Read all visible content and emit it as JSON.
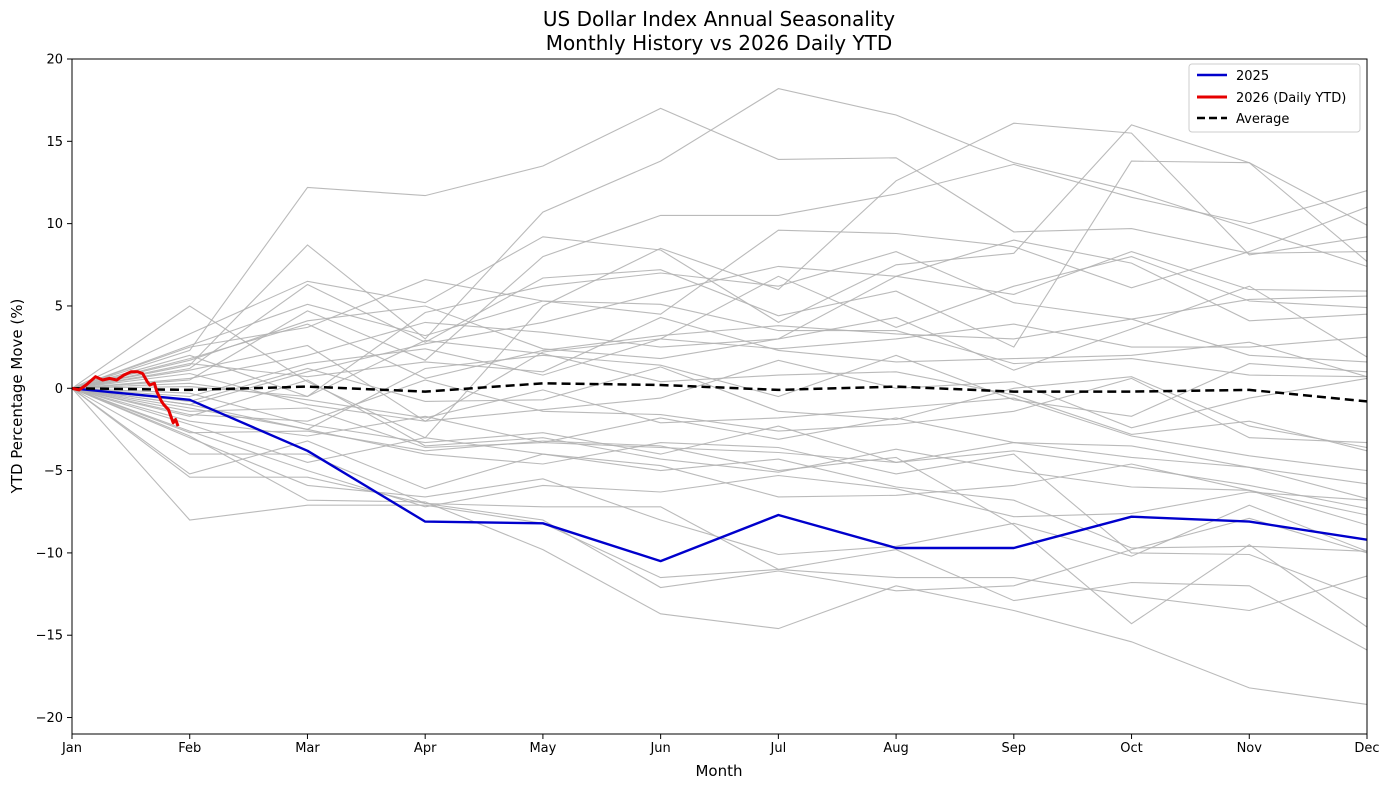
{
  "chart_data": {
    "type": "line",
    "title_line1": "US Dollar Index Annual Seasonality",
    "title_line2": "Monthly History vs 2026 Daily YTD",
    "xlabel": "Month",
    "ylabel": "YTD Percentage Move (%)",
    "categories": [
      "Jan",
      "Feb",
      "Mar",
      "Apr",
      "May",
      "Jun",
      "Jul",
      "Aug",
      "Sep",
      "Oct",
      "Nov",
      "Dec"
    ],
    "ylim": [
      -21,
      20
    ],
    "yticks": [
      20,
      15,
      10,
      5,
      0,
      -5,
      -10,
      -15,
      -20
    ],
    "ytick_labels": [
      "20",
      "15",
      "10",
      "5",
      "0",
      "−5",
      "−10",
      "−15",
      "−20"
    ],
    "legend_position": "top-right",
    "colors": {
      "history": "#b3b3b3",
      "y2025": "#0000cc",
      "y2026": "#e60000",
      "average": "#000000"
    },
    "series": [
      {
        "name": "2025",
        "role": "highlight",
        "values": [
          0,
          -0.7,
          -3.8,
          -8.1,
          -8.2,
          -10.5,
          -7.7,
          -9.7,
          -9.7,
          -7.8,
          -8.1,
          -9.2
        ]
      },
      {
        "name": "Average",
        "role": "average",
        "values": [
          0,
          -0.1,
          0.1,
          -0.2,
          0.3,
          0.2,
          -0.1,
          0.1,
          -0.2,
          -0.2,
          -0.1,
          -0.8
        ]
      }
    ],
    "ytd_2026": {
      "name": "2026 (Daily YTD)",
      "x": [
        0,
        0.06,
        0.12,
        0.2,
        0.26,
        0.32,
        0.38,
        0.44,
        0.5,
        0.56,
        0.6,
        0.64,
        0.66,
        0.7,
        0.72,
        0.76,
        0.78,
        0.82,
        0.86,
        0.88,
        0.9
      ],
      "y": [
        0,
        -0.1,
        0.2,
        0.7,
        0.5,
        0.6,
        0.5,
        0.8,
        1.0,
        1.0,
        0.9,
        0.4,
        0.2,
        0.3,
        -0.2,
        -0.8,
        -1.0,
        -1.3,
        -2.1,
        -1.9,
        -2.3
      ]
    },
    "history": [
      [
        0,
        2.3,
        12.2,
        11.7,
        13.5,
        17.0,
        13.9,
        14.0,
        9.5,
        9.7,
        8.2,
        8.3
      ],
      [
        0,
        1.4,
        8.7,
        3.0,
        10.7,
        13.8,
        18.2,
        16.6,
        13.7,
        12.0,
        9.7,
        7.4
      ],
      [
        0,
        5.0,
        0.4,
        -3.0,
        5.0,
        8.5,
        6.0,
        12.6,
        16.1,
        15.5,
        8.1,
        9.2
      ],
      [
        0,
        3.3,
        6.5,
        5.2,
        9.2,
        8.4,
        4.0,
        7.5,
        8.2,
        16.0,
        13.7,
        7.7
      ],
      [
        0,
        0.5,
        4.7,
        1.7,
        8.0,
        10.5,
        10.5,
        11.8,
        13.6,
        11.6,
        10.0,
        12.0
      ],
      [
        0,
        2.5,
        3.7,
        6.6,
        5.3,
        4.5,
        9.6,
        9.4,
        8.6,
        6.1,
        8.3,
        11.0
      ],
      [
        0,
        1.2,
        6.3,
        2.8,
        6.7,
        7.2,
        4.4,
        5.9,
        2.5,
        13.8,
        13.7,
        9.9
      ],
      [
        0,
        -1.0,
        1.0,
        2.7,
        4.0,
        5.8,
        7.4,
        6.8,
        5.7,
        8.3,
        6.0,
        5.9
      ],
      [
        0,
        2.0,
        -0.5,
        4.6,
        6.2,
        7.0,
        6.2,
        8.3,
        5.2,
        4.2,
        5.4,
        5.6
      ],
      [
        0,
        1.1,
        2.6,
        -2.0,
        2.2,
        3.0,
        6.8,
        3.7,
        6.2,
        8.0,
        5.3,
        4.9
      ],
      [
        0,
        1.7,
        4.1,
        5.0,
        2.4,
        1.8,
        3.0,
        6.8,
        9.0,
        7.6,
        4.1,
        4.5
      ],
      [
        0,
        0.6,
        2.0,
        4.0,
        3.4,
        2.5,
        3.0,
        4.3,
        1.1,
        3.6,
        6.2,
        1.9
      ],
      [
        0,
        -0.5,
        1.5,
        2.4,
        0.8,
        3.0,
        2.4,
        3.0,
        3.9,
        2.5,
        2.5,
        3.1
      ],
      [
        0,
        1.5,
        0.7,
        1.6,
        1.0,
        4.3,
        2.3,
        1.6,
        1.8,
        2.0,
        2.8,
        0.7
      ],
      [
        0,
        -1.2,
        -2.5,
        1.2,
        2.0,
        1.4,
        -0.5,
        2.0,
        -0.7,
        -1.7,
        1.5,
        1.0
      ],
      [
        0,
        0.9,
        -1.0,
        -2.0,
        -1.3,
        -0.6,
        1.7,
        0.0,
        0.4,
        -2.4,
        -0.6,
        0.6
      ],
      [
        0,
        -0.8,
        1.2,
        -0.8,
        -0.7,
        1.3,
        -1.4,
        -1.9,
        0.0,
        0.7,
        -2.3,
        -3.6
      ],
      [
        0,
        -1.6,
        -2.0,
        0.5,
        -1.4,
        -1.6,
        -2.6,
        -2.2,
        -1.4,
        0.6,
        -3.0,
        -3.3
      ],
      [
        0,
        -1.4,
        -1.2,
        -3.6,
        -3.3,
        -1.8,
        -3.1,
        -1.8,
        -3.3,
        -4.2,
        -4.8,
        -6.7
      ],
      [
        0,
        -2.0,
        -2.9,
        -1.7,
        -3.3,
        -3.6,
        -3.9,
        -4.5,
        -3.8,
        -4.8,
        -5.9,
        -7.3
      ],
      [
        0,
        -1.7,
        0.5,
        -3.5,
        -3.0,
        -4.3,
        -5.1,
        -3.7,
        -5.0,
        -6.0,
        -6.2,
        -7.7
      ],
      [
        0,
        -2.2,
        -4.5,
        -3.0,
        -4.0,
        -5.0,
        -4.3,
        -6.0,
        -6.8,
        -9.7,
        -9.6,
        -9.9
      ],
      [
        0,
        -2.6,
        -5.0,
        -7.2,
        -5.9,
        -6.3,
        -5.3,
        -6.1,
        -7.8,
        -7.6,
        -6.3,
        -6.8
      ],
      [
        0,
        -5.2,
        -3.2,
        -6.1,
        -4.0,
        -4.7,
        -6.6,
        -6.5,
        -5.9,
        -4.6,
        -6.2,
        -8.3
      ],
      [
        0,
        -3.0,
        -5.9,
        -6.6,
        -5.5,
        -8.0,
        -10.1,
        -9.6,
        -8.2,
        -10.2,
        -7.1,
        -9.9
      ],
      [
        0,
        -5.4,
        -5.4,
        -7.0,
        -8.0,
        -12.1,
        -11.1,
        -12.3,
        -12.0,
        -9.8,
        -7.9,
        -10.0
      ],
      [
        0,
        -8.0,
        -7.1,
        -7.1,
        -8.2,
        -11.5,
        -11.0,
        -11.5,
        -11.5,
        -12.6,
        -13.5,
        -11.4
      ],
      [
        0,
        -2.9,
        -6.8,
        -6.9,
        -9.8,
        -13.7,
        -14.6,
        -12.0,
        -13.5,
        -15.4,
        -18.2,
        -19.2
      ],
      [
        0,
        -4.0,
        -4.0,
        -7.0,
        -7.2,
        -7.2,
        -11.0,
        -9.8,
        -12.9,
        -11.8,
        -12.0,
        -15.9
      ],
      [
        0,
        -2.7,
        -2.6,
        -3.8,
        -3.2,
        -3.5,
        -5.0,
        -4.2,
        -8.3,
        -14.3,
        -9.5,
        -14.5
      ],
      [
        0,
        -1.0,
        -2.5,
        -4.0,
        -4.6,
        -3.3,
        -3.6,
        -5.2,
        -4.0,
        -10.0,
        -10.1,
        -12.8
      ],
      [
        0,
        1.8,
        3.9,
        0.6,
        2.3,
        3.2,
        3.8,
        3.3,
        3.0,
        4.2,
        2.0,
        1.6
      ],
      [
        0,
        -0.3,
        -2.2,
        -3.3,
        -2.7,
        -4.0,
        -2.3,
        -4.5,
        -3.3,
        -3.5,
        -4.8,
        -5.8
      ],
      [
        0,
        0.3,
        -0.7,
        -1.8,
        -0.1,
        -2.1,
        -1.8,
        -1.2,
        -0.6,
        -2.9,
        -4.1,
        -5.0
      ],
      [
        0,
        2.6,
        5.1,
        3.2,
        5.3,
        5.1,
        3.5,
        3.5,
        1.5,
        1.8,
        0.8,
        0.7
      ],
      [
        0,
        0.1,
        -0.5,
        2.9,
        2.1,
        0.4,
        0.8,
        1.0,
        -0.4,
        -2.8,
        -2.0,
        -3.8
      ]
    ]
  }
}
